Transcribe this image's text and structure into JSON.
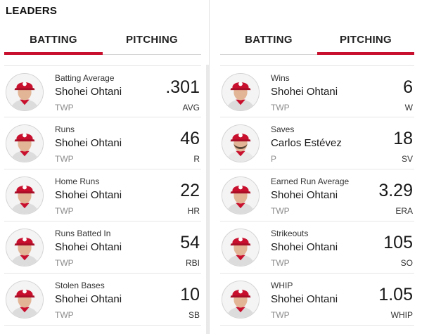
{
  "section": {
    "title": "LEADERS"
  },
  "colors": {
    "accent": "#c8102e"
  },
  "batting_panel": {
    "tabs": [
      {
        "label": "BATTING",
        "active": true
      },
      {
        "label": "PITCHING",
        "active": false
      }
    ],
    "leaders": [
      {
        "stat": "Batting Average",
        "player": "Shohei Ohtani",
        "position": "TWP",
        "value": ".301",
        "abbr": "AVG",
        "avatar_icon": "player-headshot-ohtani"
      },
      {
        "stat": "Runs",
        "player": "Shohei Ohtani",
        "position": "TWP",
        "value": "46",
        "abbr": "R",
        "avatar_icon": "player-headshot-ohtani"
      },
      {
        "stat": "Home Runs",
        "player": "Shohei Ohtani",
        "position": "TWP",
        "value": "22",
        "abbr": "HR",
        "avatar_icon": "player-headshot-ohtani"
      },
      {
        "stat": "Runs Batted In",
        "player": "Shohei Ohtani",
        "position": "TWP",
        "value": "54",
        "abbr": "RBI",
        "avatar_icon": "player-headshot-ohtani"
      },
      {
        "stat": "Stolen Bases",
        "player": "Shohei Ohtani",
        "position": "TWP",
        "value": "10",
        "abbr": "SB",
        "avatar_icon": "player-headshot-ohtani"
      }
    ]
  },
  "pitching_panel": {
    "tabs": [
      {
        "label": "BATTING",
        "active": false
      },
      {
        "label": "PITCHING",
        "active": true
      }
    ],
    "leaders": [
      {
        "stat": "Wins",
        "player": "Shohei Ohtani",
        "position": "TWP",
        "value": "6",
        "abbr": "W",
        "avatar_icon": "player-headshot-ohtani"
      },
      {
        "stat": "Saves",
        "player": "Carlos Estévez",
        "position": "P",
        "value": "18",
        "abbr": "SV",
        "avatar_icon": "player-headshot-estevez"
      },
      {
        "stat": "Earned Run Average",
        "player": "Shohei Ohtani",
        "position": "TWP",
        "value": "3.29",
        "abbr": "ERA",
        "avatar_icon": "player-headshot-ohtani"
      },
      {
        "stat": "Strikeouts",
        "player": "Shohei Ohtani",
        "position": "TWP",
        "value": "105",
        "abbr": "SO",
        "avatar_icon": "player-headshot-ohtani"
      },
      {
        "stat": "WHIP",
        "player": "Shohei Ohtani",
        "position": "TWP",
        "value": "1.05",
        "abbr": "WHIP",
        "avatar_icon": "player-headshot-ohtani"
      }
    ]
  }
}
